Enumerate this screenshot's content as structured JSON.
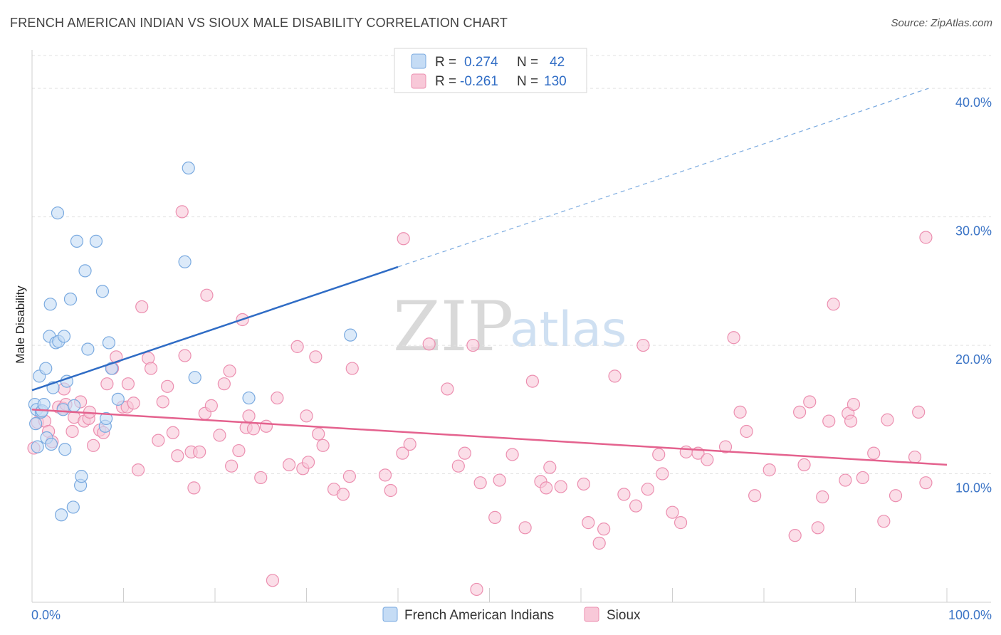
{
  "title": "FRENCH AMERICAN INDIAN VS SIOUX MALE DISABILITY CORRELATION CHART",
  "source": "Source: ZipAtlas.com",
  "watermark": {
    "zip": "ZIP",
    "atlas": "atlas"
  },
  "colors": {
    "blue": "#7aaae0",
    "blue_fill": "#c5dcf5",
    "blue_line": "#2f6cc5",
    "pink": "#ec8fb0",
    "pink_fill": "#f8c8d8",
    "pink_line": "#e4628e"
  },
  "legend": {
    "rows": [
      {
        "r_label": "R =",
        "r_value": "0.274",
        "n_label": "N =",
        "n_value": "42"
      },
      {
        "r_label": "R =",
        "r_value": "-0.261",
        "n_label": "N =",
        "n_value": "130"
      }
    ]
  },
  "bottom_legend": [
    "French American Indians",
    "Sioux"
  ],
  "chart_data": {
    "type": "scatter",
    "title": "FRENCH AMERICAN INDIAN VS SIOUX MALE DISABILITY CORRELATION CHART",
    "xlabel": "",
    "ylabel": "Male Disability",
    "xlim": [
      0,
      100
    ],
    "ylim": [
      0,
      43
    ],
    "x_tick_labels": [
      "0.0%",
      "100.0%"
    ],
    "y_ticks": [
      10,
      20,
      30,
      40
    ],
    "y_tick_labels": [
      "10.0%",
      "20.0%",
      "30.0%",
      "40.0%"
    ],
    "series": [
      {
        "name": "French American Indians",
        "color": "#7aaae0",
        "trend": {
          "x0": 0,
          "y0": 16.5,
          "x1": 40,
          "y1": 26.1,
          "dashed_to_x": 98,
          "dashed_to_y": 40
        },
        "points": [
          [
            0.3,
            15.4
          ],
          [
            0.4,
            13.9
          ],
          [
            0.5,
            15.0
          ],
          [
            0.6,
            12.1
          ],
          [
            0.8,
            17.6
          ],
          [
            1.0,
            14.8
          ],
          [
            1.1,
            14.9
          ],
          [
            1.3,
            15.4
          ],
          [
            1.5,
            18.2
          ],
          [
            1.6,
            12.8
          ],
          [
            1.9,
            20.7
          ],
          [
            2.0,
            23.2
          ],
          [
            2.1,
            12.3
          ],
          [
            2.3,
            16.7
          ],
          [
            2.6,
            20.2
          ],
          [
            2.8,
            30.3
          ],
          [
            2.9,
            20.3
          ],
          [
            3.2,
            6.8
          ],
          [
            3.4,
            15.0
          ],
          [
            3.5,
            20.7
          ],
          [
            3.6,
            11.9
          ],
          [
            3.8,
            17.2
          ],
          [
            4.2,
            23.6
          ],
          [
            4.5,
            7.4
          ],
          [
            4.6,
            15.3
          ],
          [
            4.9,
            28.1
          ],
          [
            5.3,
            9.1
          ],
          [
            5.4,
            9.8
          ],
          [
            5.8,
            25.8
          ],
          [
            6.1,
            19.7
          ],
          [
            7.0,
            28.1
          ],
          [
            7.7,
            24.2
          ],
          [
            8.0,
            13.7
          ],
          [
            8.1,
            14.3
          ],
          [
            8.4,
            20.2
          ],
          [
            8.7,
            18.2
          ],
          [
            9.4,
            15.8
          ],
          [
            16.7,
            26.5
          ],
          [
            17.1,
            33.8
          ],
          [
            17.8,
            17.5
          ],
          [
            23.7,
            15.9
          ],
          [
            34.8,
            20.8
          ]
        ]
      },
      {
        "name": "Sioux",
        "color": "#ec8fb0",
        "trend": {
          "x0": 0,
          "y0": 15.0,
          "x1": 100,
          "y1": 10.7
        },
        "points": [
          [
            0.2,
            12.0
          ],
          [
            0.6,
            14.0
          ],
          [
            1.4,
            14.1
          ],
          [
            1.8,
            13.3
          ],
          [
            2.2,
            12.5
          ],
          [
            2.9,
            15.2
          ],
          [
            3.4,
            15.1
          ],
          [
            3.5,
            16.6
          ],
          [
            3.7,
            15.4
          ],
          [
            4.4,
            13.3
          ],
          [
            4.6,
            14.4
          ],
          [
            5.3,
            15.6
          ],
          [
            5.7,
            14.1
          ],
          [
            6.2,
            14.3
          ],
          [
            6.3,
            14.8
          ],
          [
            6.7,
            12.2
          ],
          [
            7.4,
            13.4
          ],
          [
            7.8,
            13.2
          ],
          [
            8.2,
            17.0
          ],
          [
            8.8,
            18.2
          ],
          [
            9.2,
            19.1
          ],
          [
            9.9,
            15.2
          ],
          [
            10.4,
            15.2
          ],
          [
            10.5,
            17.0
          ],
          [
            11.1,
            15.5
          ],
          [
            11.6,
            10.3
          ],
          [
            12.0,
            23.0
          ],
          [
            12.7,
            19.0
          ],
          [
            13.0,
            18.2
          ],
          [
            13.8,
            12.6
          ],
          [
            14.3,
            15.6
          ],
          [
            14.8,
            16.8
          ],
          [
            15.4,
            13.2
          ],
          [
            15.9,
            11.4
          ],
          [
            16.4,
            30.4
          ],
          [
            16.7,
            19.2
          ],
          [
            17.4,
            11.7
          ],
          [
            17.7,
            8.9
          ],
          [
            18.3,
            11.7
          ],
          [
            18.9,
            14.7
          ],
          [
            19.1,
            23.9
          ],
          [
            19.6,
            15.3
          ],
          [
            20.5,
            13.0
          ],
          [
            21.0,
            17.0
          ],
          [
            21.6,
            18.0
          ],
          [
            21.8,
            10.6
          ],
          [
            22.6,
            11.8
          ],
          [
            23.0,
            22.0
          ],
          [
            23.4,
            13.6
          ],
          [
            23.7,
            14.5
          ],
          [
            24.2,
            13.5
          ],
          [
            25.0,
            9.7
          ],
          [
            25.6,
            13.7
          ],
          [
            26.3,
            1.7
          ],
          [
            26.8,
            15.9
          ],
          [
            28.1,
            10.7
          ],
          [
            29.0,
            19.9
          ],
          [
            29.6,
            10.4
          ],
          [
            30.0,
            14.5
          ],
          [
            30.2,
            10.9
          ],
          [
            31.0,
            19.1
          ],
          [
            31.3,
            13.1
          ],
          [
            31.8,
            12.2
          ],
          [
            33.0,
            8.8
          ],
          [
            34.0,
            8.4
          ],
          [
            34.7,
            9.8
          ],
          [
            35.0,
            18.2
          ],
          [
            38.6,
            9.9
          ],
          [
            39.2,
            8.7
          ],
          [
            40.5,
            11.6
          ],
          [
            40.6,
            28.3
          ],
          [
            41.3,
            12.3
          ],
          [
            43.4,
            20.1
          ],
          [
            45.4,
            16.6
          ],
          [
            46.6,
            10.6
          ],
          [
            47.3,
            11.6
          ],
          [
            48.2,
            20.0
          ],
          [
            48.6,
            1.0
          ],
          [
            49.0,
            9.3
          ],
          [
            50.6,
            6.6
          ],
          [
            51.1,
            9.5
          ],
          [
            52.5,
            11.5
          ],
          [
            53.9,
            5.8
          ],
          [
            54.7,
            17.2
          ],
          [
            55.6,
            9.4
          ],
          [
            56.2,
            8.9
          ],
          [
            56.6,
            10.5
          ],
          [
            57.8,
            9.0
          ],
          [
            60.3,
            9.2
          ],
          [
            60.8,
            6.2
          ],
          [
            62.0,
            4.6
          ],
          [
            62.5,
            5.7
          ],
          [
            63.7,
            17.6
          ],
          [
            64.7,
            8.4
          ],
          [
            66.0,
            7.5
          ],
          [
            66.8,
            20.0
          ],
          [
            67.3,
            8.8
          ],
          [
            68.5,
            11.5
          ],
          [
            68.9,
            10.0
          ],
          [
            70.0,
            7.0
          ],
          [
            70.9,
            6.2
          ],
          [
            71.5,
            11.7
          ],
          [
            72.8,
            11.6
          ],
          [
            73.8,
            11.1
          ],
          [
            75.8,
            12.1
          ],
          [
            76.7,
            20.6
          ],
          [
            77.4,
            14.8
          ],
          [
            78.1,
            13.3
          ],
          [
            79.0,
            8.3
          ],
          [
            80.6,
            10.3
          ],
          [
            83.4,
            5.2
          ],
          [
            83.9,
            14.8
          ],
          [
            84.4,
            10.7
          ],
          [
            85.0,
            15.6
          ],
          [
            85.9,
            5.8
          ],
          [
            86.4,
            8.2
          ],
          [
            87.1,
            14.1
          ],
          [
            87.6,
            23.2
          ],
          [
            88.9,
            9.5
          ],
          [
            89.2,
            14.7
          ],
          [
            89.5,
            14.1
          ],
          [
            89.8,
            15.4
          ],
          [
            90.8,
            9.7
          ],
          [
            92.0,
            11.6
          ],
          [
            93.1,
            6.3
          ],
          [
            93.5,
            14.2
          ],
          [
            94.4,
            8.3
          ],
          [
            96.5,
            11.3
          ],
          [
            96.9,
            14.8
          ],
          [
            97.7,
            28.4
          ],
          [
            97.7,
            9.3
          ]
        ]
      }
    ]
  }
}
